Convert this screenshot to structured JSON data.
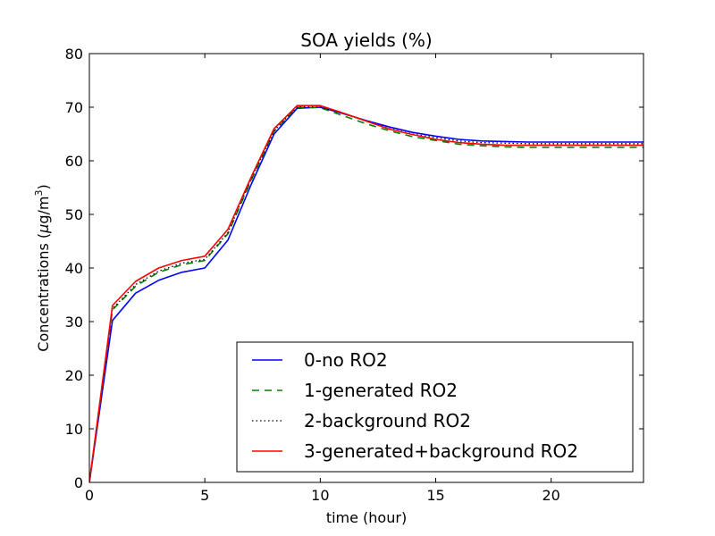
{
  "chart_data": {
    "type": "line",
    "title": "SOA yields (%)",
    "xlabel": "time (hour)",
    "ylabel_prefix": "Concentrations (",
    "ylabel_mu": "μ",
    "ylabel_unit": "g/m",
    "ylabel_sup": "3",
    "ylabel_suffix": ")",
    "xlim": [
      0,
      24
    ],
    "ylim": [
      0,
      80
    ],
    "xticks": [
      0,
      5,
      10,
      15,
      20
    ],
    "yticks": [
      0,
      10,
      20,
      30,
      40,
      50,
      60,
      70,
      80
    ],
    "grid": false,
    "legend_placement": "lower-right",
    "x": [
      0,
      1,
      2,
      3,
      4,
      5,
      6,
      7,
      8,
      9,
      10,
      11,
      12,
      13,
      14,
      15,
      16,
      17,
      18,
      19,
      20,
      21,
      22,
      23,
      24
    ],
    "series": [
      {
        "name": "0-no RO2",
        "color": "#0000ff",
        "dash": "solid",
        "values": [
          0,
          30.2,
          35.3,
          37.7,
          39.2,
          40.0,
          45.2,
          55.5,
          65.0,
          69.8,
          70.0,
          68.8,
          67.5,
          66.3,
          65.3,
          64.6,
          64.0,
          63.7,
          63.6,
          63.5,
          63.5,
          63.5,
          63.5,
          63.5,
          63.5
        ]
      },
      {
        "name": "1-generated RO2",
        "color": "#008000",
        "dash": "dashed",
        "values": [
          0,
          32.2,
          36.6,
          39.2,
          40.6,
          41.4,
          46.4,
          56.3,
          65.5,
          70.0,
          69.9,
          68.4,
          66.9,
          65.6,
          64.5,
          63.8,
          63.1,
          62.8,
          62.6,
          62.5,
          62.5,
          62.5,
          62.5,
          62.5,
          62.5
        ]
      },
      {
        "name": "2-background RO2",
        "color": "#000000",
        "dash": "dotted",
        "values": [
          0,
          32.4,
          36.9,
          39.4,
          40.9,
          41.6,
          46.6,
          56.5,
          65.6,
          70.1,
          70.0,
          68.8,
          67.4,
          66.0,
          65.0,
          64.3,
          63.7,
          63.4,
          63.3,
          63.2,
          63.2,
          63.2,
          63.2,
          63.2,
          63.2
        ]
      },
      {
        "name": "3-generated+background RO2",
        "color": "#ff0000",
        "dash": "solid",
        "values": [
          0,
          33.0,
          37.5,
          40.0,
          41.4,
          42.2,
          47.2,
          56.9,
          66.0,
          70.3,
          70.3,
          68.9,
          67.4,
          65.9,
          64.9,
          64.0,
          63.4,
          63.1,
          62.9,
          62.9,
          62.9,
          62.9,
          62.9,
          62.9,
          62.9
        ]
      }
    ]
  }
}
